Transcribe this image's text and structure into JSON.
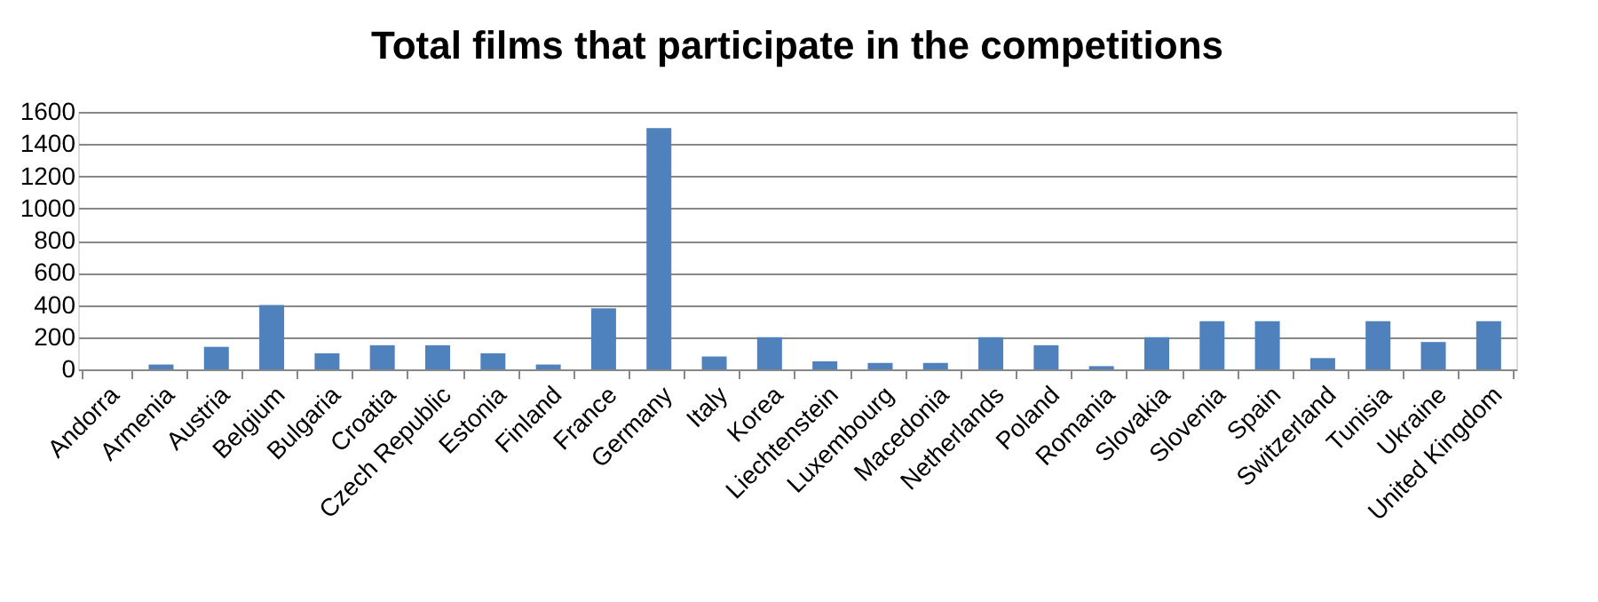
{
  "chart_data": {
    "type": "bar",
    "title": "Total films that participate in the competitions",
    "categories": [
      "Andorra",
      "Armenia",
      "Austria",
      "Belgium",
      "Bulgaria",
      "Croatia",
      "Czech Republic",
      "Estonia",
      "Finland",
      "France",
      "Germany",
      "Italy",
      "Korea",
      "Liechtenstein",
      "Luxembourg",
      "Macedonia",
      "Netherlands",
      "Poland",
      "Romania",
      "Slovakia",
      "Slovenia",
      "Spain",
      "Switzerland",
      "Tunisia",
      "Ukraine",
      "United Kingdom"
    ],
    "values": [
      0,
      30,
      140,
      400,
      100,
      150,
      150,
      100,
      30,
      380,
      1500,
      80,
      200,
      50,
      40,
      40,
      200,
      150,
      20,
      200,
      300,
      300,
      70,
      300,
      170,
      300
    ],
    "color": "#4f81bd",
    "ylim": [
      0,
      1600
    ],
    "yticks": [
      0,
      200,
      400,
      600,
      800,
      1000,
      1200,
      1400,
      1600
    ],
    "grid": "y"
  }
}
